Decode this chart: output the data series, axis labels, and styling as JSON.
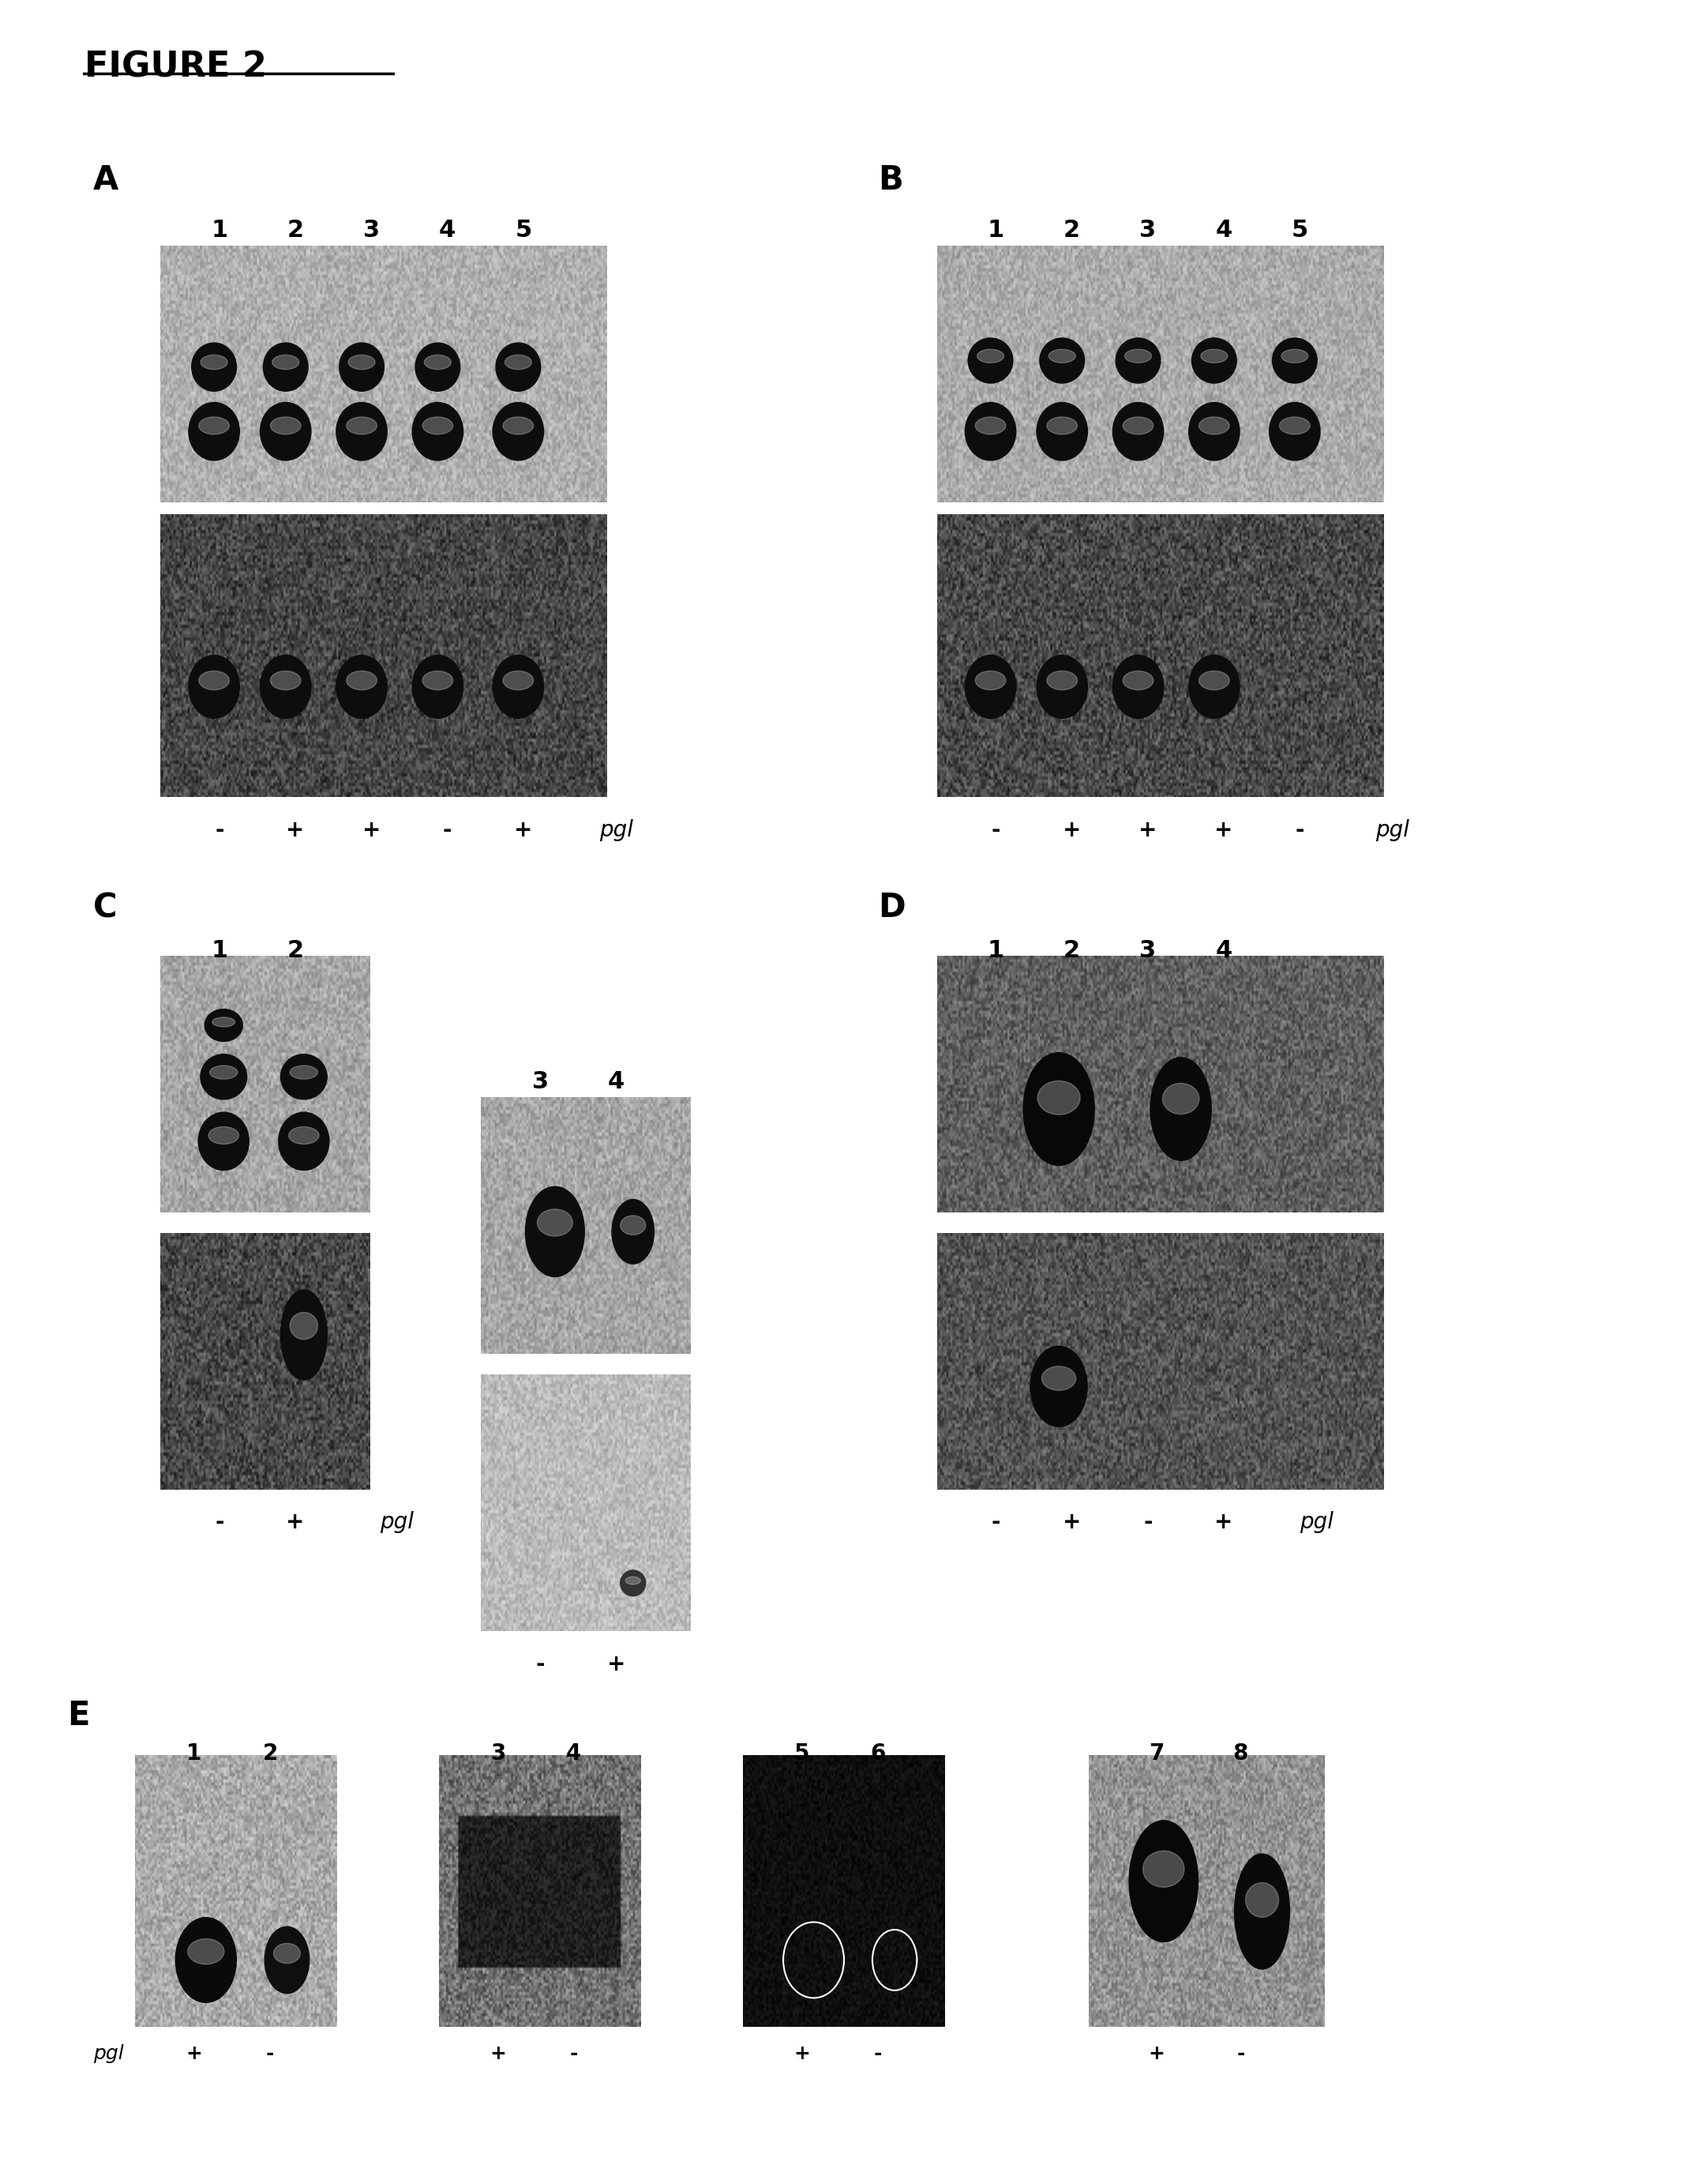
{
  "title": "FIGURE 2",
  "bg_color": "#ffffff",
  "panel_A": {
    "label": "A",
    "lane_labels": [
      "1",
      "2",
      "3",
      "4",
      "5"
    ],
    "pgl_labels": [
      "-",
      "+",
      "+",
      "-",
      "+"
    ],
    "pgl_text": "pgl"
  },
  "panel_B": {
    "label": "B",
    "lane_labels": [
      "1",
      "2",
      "3",
      "4",
      "5"
    ],
    "pgl_labels": [
      "-",
      "+",
      "+",
      "+",
      "-"
    ],
    "pgl_text": "pgl"
  },
  "panel_C": {
    "label": "C",
    "lane_labels_top": [
      "1",
      "2"
    ],
    "lane_labels_mid": [
      "3",
      "4"
    ],
    "pgl_labels_left": [
      "-",
      "+"
    ],
    "pgl_labels_right": [
      "-",
      "+"
    ],
    "pgl_text": "pgl"
  },
  "panel_D": {
    "label": "D",
    "lane_labels": [
      "1",
      "2",
      "3",
      "4"
    ],
    "pgl_labels": [
      "-",
      "+",
      "-",
      "+"
    ],
    "pgl_text": "pgl"
  },
  "panel_E": {
    "label": "E",
    "lane_labels_1": [
      "1",
      "2"
    ],
    "lane_labels_2": [
      "3",
      "4"
    ],
    "lane_labels_3": [
      "5",
      "6"
    ],
    "lane_labels_4": [
      "7",
      "8"
    ],
    "pgl_labels_1": [
      "+",
      "-"
    ],
    "pgl_labels_2": [
      "+",
      "-"
    ],
    "pgl_labels_3": [
      "+",
      "-"
    ],
    "pgl_labels_4": [
      "+",
      "-"
    ],
    "pgl_text": "pgl"
  }
}
